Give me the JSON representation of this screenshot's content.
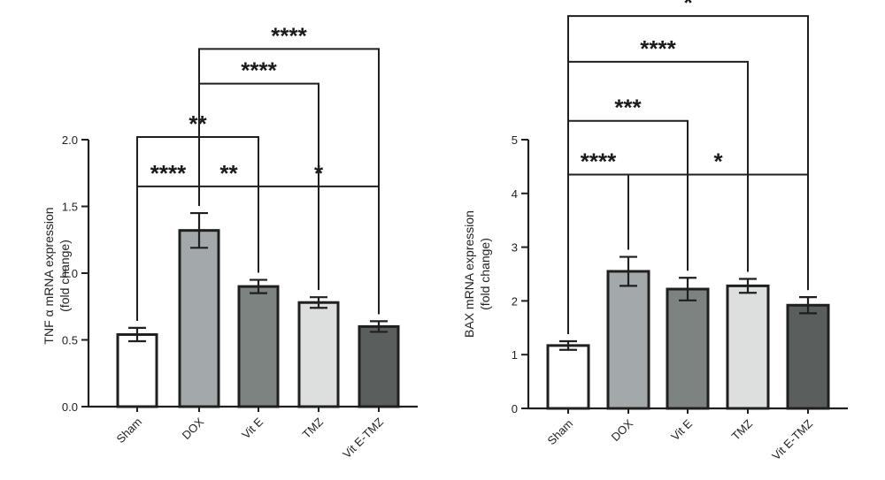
{
  "chart_data": [
    {
      "type": "bar",
      "ylabel_lines": [
        "TNF α mRNA expression",
        "(fold change)"
      ],
      "ylim": [
        0,
        2.0
      ],
      "yticks": [
        "0.0",
        "0.5",
        "1.0",
        "1.5",
        "2.0"
      ],
      "categories": [
        "Sham",
        "DOX",
        "Vit E",
        "TMZ",
        "Vit E-TMZ"
      ],
      "values": [
        0.54,
        1.32,
        0.9,
        0.78,
        0.6
      ],
      "errors": [
        0.05,
        0.13,
        0.05,
        0.04,
        0.04
      ],
      "colors": [
        "#ffffff",
        "#a3a8ab",
        "#7d8380",
        "#dcdfdd",
        "#5a5f5d"
      ],
      "significance": [
        {
          "from": 0,
          "to": 1,
          "label": "****",
          "level": 1.65
        },
        {
          "from": 1,
          "to": 2,
          "label": "**",
          "level": 1.65
        },
        {
          "from": 2,
          "to": 4,
          "label": "*",
          "level": 1.65
        },
        {
          "from": 0,
          "to": 2,
          "label": "**",
          "level": 2.02
        },
        {
          "from": 1,
          "to": 3,
          "label": "****",
          "level": 2.42
        },
        {
          "from": 1,
          "to": 4,
          "label": "****",
          "level": 2.68
        }
      ]
    },
    {
      "type": "bar",
      "ylabel_lines": [
        "BAX mRNA expression",
        "(fold change)"
      ],
      "ylim": [
        0,
        5
      ],
      "yticks": [
        "0",
        "1",
        "2",
        "3",
        "4",
        "5"
      ],
      "categories": [
        "Sham",
        "DOX",
        "Vit E",
        "TMZ",
        "Vit E-TMZ"
      ],
      "values": [
        1.17,
        2.55,
        2.22,
        2.28,
        1.92
      ],
      "errors": [
        0.08,
        0.27,
        0.21,
        0.13,
        0.15
      ],
      "colors": [
        "#ffffff",
        "#a3a8ab",
        "#7d8380",
        "#dcdfdd",
        "#5a5f5d"
      ],
      "significance": [
        {
          "from": 0,
          "to": 1,
          "label": "****",
          "level": 4.35
        },
        {
          "from": 1,
          "to": 4,
          "label": "*",
          "level": 4.35
        },
        {
          "from": 0,
          "to": 2,
          "label": "***",
          "level": 5.35
        },
        {
          "from": 0,
          "to": 3,
          "label": "****",
          "level": 6.45
        },
        {
          "from": 0,
          "to": 4,
          "label": "*",
          "level": 7.3
        }
      ]
    }
  ]
}
